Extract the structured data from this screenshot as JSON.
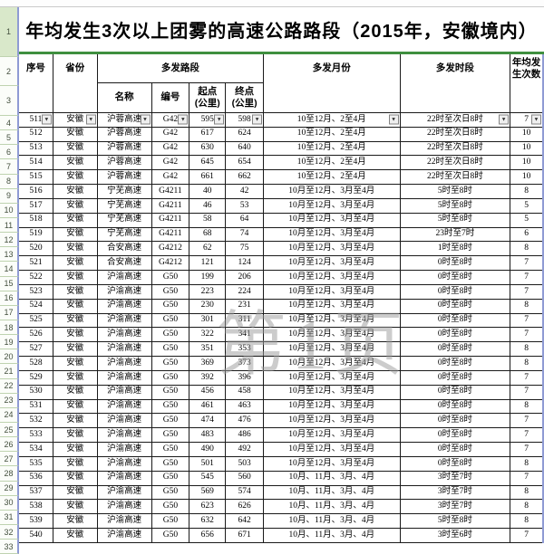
{
  "title": "年均发生3次以上团雾的高速公路路段（2015年，安徽境内）",
  "watermark": "第1页",
  "gutter_rows": [
    "1",
    "2",
    "3"
  ],
  "header": {
    "seq": "序号",
    "province": "省份",
    "section_group": "多发路段",
    "name": "名称",
    "code": "编号",
    "start_line1": "起点",
    "start_line2": "(公里)",
    "end_line1": "终点",
    "end_line2": "(公里)",
    "months": "多发月份",
    "period": "多发时段",
    "count_line1": "年均发",
    "count_line2": "生次数"
  },
  "filter_icon": "▼",
  "colors": {
    "title_divider_green": "#3f8f3f",
    "table_edge_blue": "#8f9bd4",
    "active_row_fill": "#d9e8ca",
    "watermark_gray": "#9a9a9a"
  },
  "table": {
    "rows": [
      {
        "sheet_row": "4",
        "seq": "511",
        "province": "安徽",
        "name": "沪蓉高速",
        "code": "G42",
        "start": "595",
        "end": "598",
        "months": "10至12月、2至4月",
        "period": "22时至次日8时",
        "count": "7"
      },
      {
        "sheet_row": "5",
        "seq": "512",
        "province": "安徽",
        "name": "沪蓉高速",
        "code": "G42",
        "start": "617",
        "end": "624",
        "months": "10至12月、2至4月",
        "period": "22时至次日8时",
        "count": "10"
      },
      {
        "sheet_row": "6",
        "seq": "513",
        "province": "安徽",
        "name": "沪蓉高速",
        "code": "G42",
        "start": "630",
        "end": "640",
        "months": "10至12月、2至4月",
        "period": "22时至次日8时",
        "count": "10"
      },
      {
        "sheet_row": "7",
        "seq": "514",
        "province": "安徽",
        "name": "沪蓉高速",
        "code": "G42",
        "start": "645",
        "end": "654",
        "months": "10至12月、2至4月",
        "period": "22时至次日8时",
        "count": "10"
      },
      {
        "sheet_row": "8",
        "seq": "515",
        "province": "安徽",
        "name": "沪蓉高速",
        "code": "G42",
        "start": "661",
        "end": "662",
        "months": "10至12月、2至4月",
        "period": "22时至次日8时",
        "count": "10"
      },
      {
        "sheet_row": "9",
        "seq": "516",
        "province": "安徽",
        "name": "宁芜高速",
        "code": "G4211",
        "start": "40",
        "end": "42",
        "months": "10月至12月、3月至4月",
        "period": "5时至8时",
        "count": "8"
      },
      {
        "sheet_row": "10",
        "seq": "517",
        "province": "安徽",
        "name": "宁芜高速",
        "code": "G4211",
        "start": "46",
        "end": "53",
        "months": "10月至12月、3月至4月",
        "period": "5时至8时",
        "count": "5"
      },
      {
        "sheet_row": "11",
        "seq": "518",
        "province": "安徽",
        "name": "宁芜高速",
        "code": "G4211",
        "start": "58",
        "end": "64",
        "months": "10月至12月、3月至4月",
        "period": "5时至8时",
        "count": "5"
      },
      {
        "sheet_row": "12",
        "seq": "519",
        "province": "安徽",
        "name": "宁芜高速",
        "code": "G4211",
        "start": "68",
        "end": "74",
        "months": "10月至12月、3月至4月",
        "period": "23时至7时",
        "count": "6"
      },
      {
        "sheet_row": "13",
        "seq": "520",
        "province": "安徽",
        "name": "合安高速",
        "code": "G4212",
        "start": "62",
        "end": "75",
        "months": "10月至12月、3月至4月",
        "period": "1时至8时",
        "count": "8"
      },
      {
        "sheet_row": "14",
        "seq": "521",
        "province": "安徽",
        "name": "合安高速",
        "code": "G4212",
        "start": "121",
        "end": "124",
        "months": "10月至12月、3月至4月",
        "period": "0时至8时",
        "count": "7"
      },
      {
        "sheet_row": "15",
        "seq": "522",
        "province": "安徽",
        "name": "沪渝高速",
        "code": "G50",
        "start": "199",
        "end": "206",
        "months": "10月至12月、3月至4月",
        "period": "0时至8时",
        "count": "7"
      },
      {
        "sheet_row": "16",
        "seq": "523",
        "province": "安徽",
        "name": "沪渝高速",
        "code": "G50",
        "start": "223",
        "end": "224",
        "months": "10月至12月、3月至4月",
        "period": "0时至8时",
        "count": "7"
      },
      {
        "sheet_row": "17",
        "seq": "524",
        "province": "安徽",
        "name": "沪渝高速",
        "code": "G50",
        "start": "230",
        "end": "231",
        "months": "10月至12月、3月至4月",
        "period": "0时至8时",
        "count": "8"
      },
      {
        "sheet_row": "18",
        "seq": "525",
        "province": "安徽",
        "name": "沪渝高速",
        "code": "G50",
        "start": "301",
        "end": "311",
        "months": "10月至12月、3月至4月",
        "period": "0时至8时",
        "count": "7"
      },
      {
        "sheet_row": "19",
        "seq": "526",
        "province": "安徽",
        "name": "沪渝高速",
        "code": "G50",
        "start": "322",
        "end": "341",
        "months": "10月至12月、3月至4月",
        "period": "0时至8时",
        "count": "7"
      },
      {
        "sheet_row": "20",
        "seq": "527",
        "province": "安徽",
        "name": "沪渝高速",
        "code": "G50",
        "start": "351",
        "end": "353",
        "months": "10月至12月、3月至4月",
        "period": "0时至8时",
        "count": "8"
      },
      {
        "sheet_row": "21",
        "seq": "528",
        "province": "安徽",
        "name": "沪渝高速",
        "code": "G50",
        "start": "369",
        "end": "373",
        "months": "10月至12月、3月至4月",
        "period": "0时至8时",
        "count": "8"
      },
      {
        "sheet_row": "22",
        "seq": "529",
        "province": "安徽",
        "name": "沪渝高速",
        "code": "G50",
        "start": "392",
        "end": "396",
        "months": "10月至12月、3月至4月",
        "period": "0时至8时",
        "count": "7"
      },
      {
        "sheet_row": "23",
        "seq": "530",
        "province": "安徽",
        "name": "沪渝高速",
        "code": "G50",
        "start": "456",
        "end": "458",
        "months": "10月至12月、3月至4月",
        "period": "0时至8时",
        "count": "7"
      },
      {
        "sheet_row": "24",
        "seq": "531",
        "province": "安徽",
        "name": "沪渝高速",
        "code": "G50",
        "start": "461",
        "end": "463",
        "months": "10月至12月、3月至4月",
        "period": "0时至8时",
        "count": "8"
      },
      {
        "sheet_row": "25",
        "seq": "532",
        "province": "安徽",
        "name": "沪渝高速",
        "code": "G50",
        "start": "474",
        "end": "476",
        "months": "10月至12月、3月至4月",
        "period": "0时至8时",
        "count": "7"
      },
      {
        "sheet_row": "26",
        "seq": "533",
        "province": "安徽",
        "name": "沪渝高速",
        "code": "G50",
        "start": "483",
        "end": "486",
        "months": "10月至12月、3月至4月",
        "period": "0时至8时",
        "count": "7"
      },
      {
        "sheet_row": "27",
        "seq": "534",
        "province": "安徽",
        "name": "沪渝高速",
        "code": "G50",
        "start": "490",
        "end": "492",
        "months": "10月至12月、3月至4月",
        "period": "0时至8时",
        "count": "7"
      },
      {
        "sheet_row": "28",
        "seq": "535",
        "province": "安徽",
        "name": "沪渝高速",
        "code": "G50",
        "start": "501",
        "end": "503",
        "months": "10月至12月、3月至4月",
        "period": "0时至8时",
        "count": "8"
      },
      {
        "sheet_row": "29",
        "seq": "536",
        "province": "安徽",
        "name": "沪渝高速",
        "code": "G50",
        "start": "545",
        "end": "560",
        "months": "10月、11月、3月、4月",
        "period": "3时至7时",
        "count": "7"
      },
      {
        "sheet_row": "30",
        "seq": "537",
        "province": "安徽",
        "name": "沪渝高速",
        "code": "G50",
        "start": "569",
        "end": "574",
        "months": "10月、11月、3月、4月",
        "period": "3时至7时",
        "count": "8"
      },
      {
        "sheet_row": "31",
        "seq": "538",
        "province": "安徽",
        "name": "沪渝高速",
        "code": "G50",
        "start": "623",
        "end": "626",
        "months": "10月、11月、3月、4月",
        "period": "3时至7时",
        "count": "8"
      },
      {
        "sheet_row": "32",
        "seq": "539",
        "province": "安徽",
        "name": "沪渝高速",
        "code": "G50",
        "start": "632",
        "end": "642",
        "months": "10月、11月、3月、4月",
        "period": "5时至8时",
        "count": "8"
      },
      {
        "sheet_row": "33",
        "seq": "540",
        "province": "安徽",
        "name": "沪渝高速",
        "code": "G50",
        "start": "656",
        "end": "671",
        "months": "10月、11月、3月、4月",
        "period": "3时至6时",
        "count": "7"
      }
    ]
  }
}
